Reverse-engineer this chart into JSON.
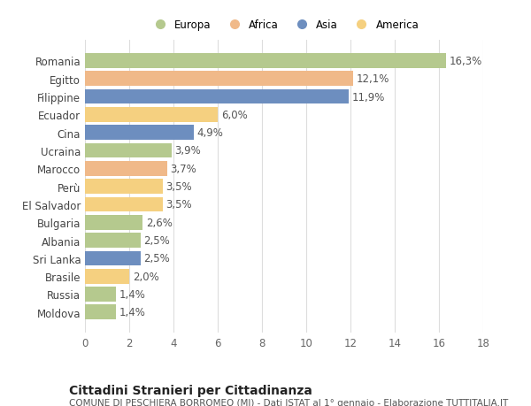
{
  "categories": [
    "Romania",
    "Egitto",
    "Filippine",
    "Ecuador",
    "Cina",
    "Ucraina",
    "Marocco",
    "Perù",
    "El Salvador",
    "Bulgaria",
    "Albania",
    "Sri Lanka",
    "Brasile",
    "Russia",
    "Moldova"
  ],
  "values": [
    16.3,
    12.1,
    11.9,
    6.0,
    4.9,
    3.9,
    3.7,
    3.5,
    3.5,
    2.6,
    2.5,
    2.5,
    2.0,
    1.4,
    1.4
  ],
  "labels": [
    "16,3%",
    "12,1%",
    "11,9%",
    "6,0%",
    "4,9%",
    "3,9%",
    "3,7%",
    "3,5%",
    "3,5%",
    "2,6%",
    "2,5%",
    "2,5%",
    "2,0%",
    "1,4%",
    "1,4%"
  ],
  "colors": [
    "#b5c98e",
    "#f0b989",
    "#6d8ebf",
    "#f5d080",
    "#6d8ebf",
    "#b5c98e",
    "#f0b989",
    "#f5d080",
    "#f5d080",
    "#b5c98e",
    "#b5c98e",
    "#6d8ebf",
    "#f5d080",
    "#b5c98e",
    "#b5c98e"
  ],
  "continents": [
    "Europa",
    "Africa",
    "Asia",
    "America"
  ],
  "legend_colors": [
    "#b5c98e",
    "#f0b989",
    "#6d8ebf",
    "#f5d080"
  ],
  "title": "Cittadini Stranieri per Cittadinanza",
  "subtitle": "COMUNE DI PESCHIERA BORROMEO (MI) - Dati ISTAT al 1° gennaio - Elaborazione TUTTITALIA.IT",
  "xlim": [
    0,
    18
  ],
  "xticks": [
    0,
    2,
    4,
    6,
    8,
    10,
    12,
    14,
    16,
    18
  ],
  "background_color": "#ffffff",
  "grid_color": "#dddddd",
  "bar_height": 0.82,
  "label_fontsize": 8.5,
  "tick_fontsize": 8.5,
  "title_fontsize": 10,
  "subtitle_fontsize": 7.5
}
